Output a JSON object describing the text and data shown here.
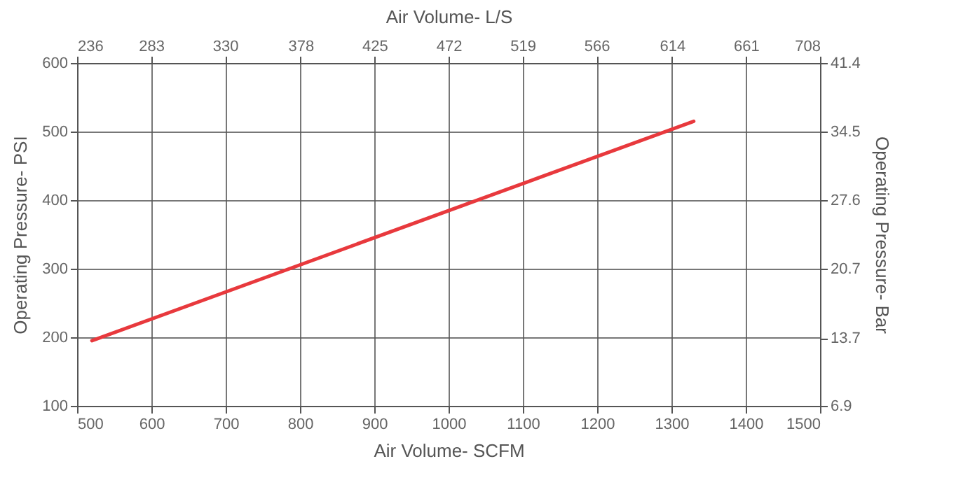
{
  "chart_data": {
    "type": "line",
    "xlabel": "Air Volume- SCFM",
    "x2label": "Air Volume- L/S",
    "ylabel": "Operating Pressure- PSI",
    "y2label": "Operating Pressure- Bar",
    "x": [
      520,
      1330
    ],
    "series": [
      {
        "color": "#e8393d",
        "values": [
          195,
          515
        ]
      }
    ],
    "xlim": [
      500,
      1500
    ],
    "xticks": [
      500,
      600,
      700,
      800,
      900,
      1000,
      1100,
      1200,
      1300,
      1400,
      1500
    ],
    "x2lim": [
      236,
      708
    ],
    "x2ticks": [
      236,
      283,
      330,
      378,
      425,
      472,
      519,
      566,
      614,
      661,
      708
    ],
    "ylim": [
      100,
      600
    ],
    "yticks": [
      100,
      200,
      300,
      400,
      500,
      600
    ],
    "y2lim": [
      6.9,
      41.4
    ],
    "y2ticks": [
      6.9,
      13.7,
      20.7,
      27.6,
      34.5,
      41.4
    ],
    "grid": true,
    "marker": "none",
    "line_style": "solid",
    "legend": false
  }
}
